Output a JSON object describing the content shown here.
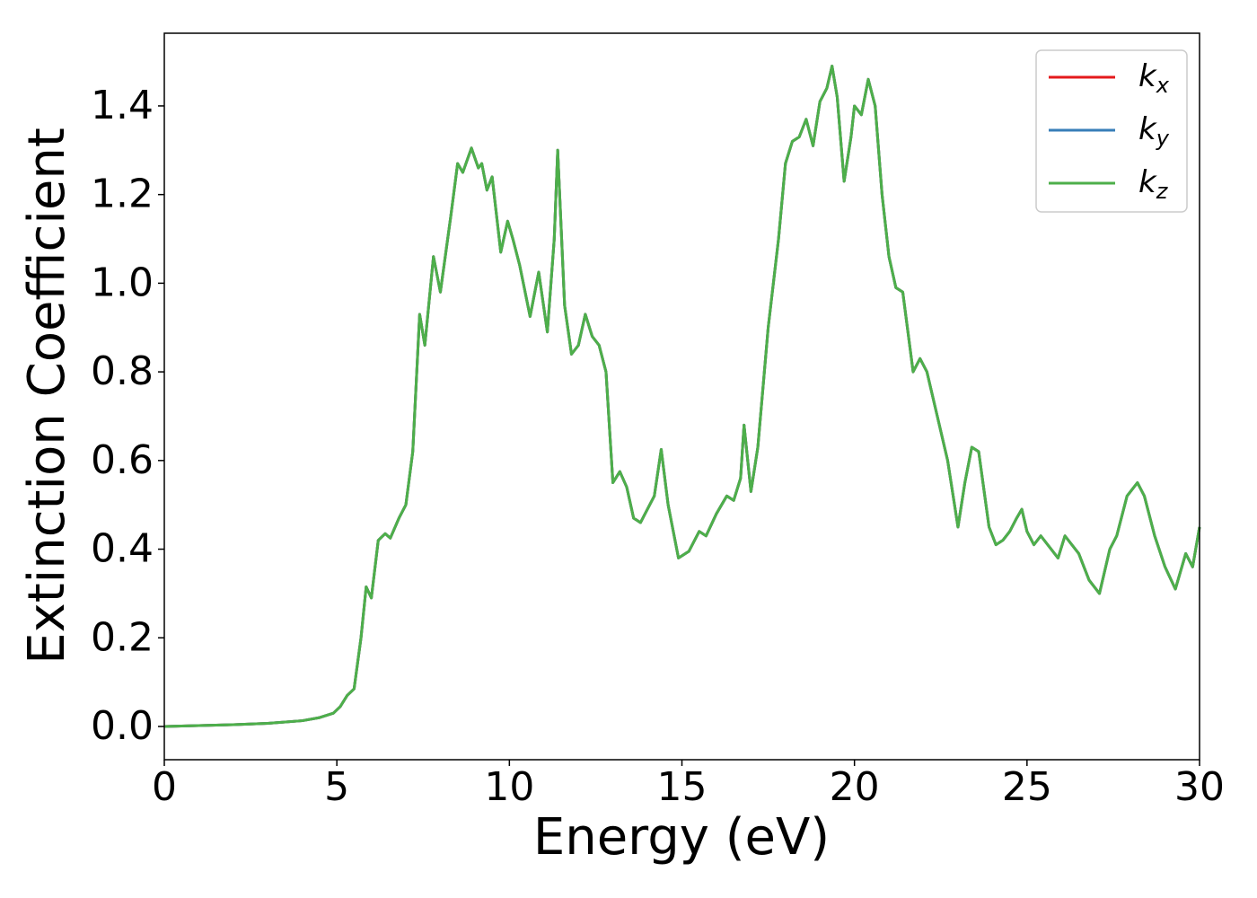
{
  "chart_data": {
    "type": "line",
    "xlabel": "Energy (eV)",
    "ylabel": "Extinction Coefficient",
    "x": [
      0,
      1,
      2,
      3,
      4,
      4.5,
      4.9,
      5.1,
      5.3,
      5.5,
      5.7,
      5.85,
      6.0,
      6.2,
      6.4,
      6.55,
      6.8,
      7.0,
      7.2,
      7.4,
      7.55,
      7.8,
      8.0,
      8.3,
      8.5,
      8.65,
      8.9,
      9.1,
      9.2,
      9.35,
      9.5,
      9.75,
      9.95,
      10.1,
      10.3,
      10.6,
      10.85,
      11.1,
      11.3,
      11.4,
      11.6,
      11.8,
      12.0,
      12.2,
      12.4,
      12.6,
      12.8,
      13.0,
      13.2,
      13.4,
      13.6,
      13.8,
      14.0,
      14.2,
      14.4,
      14.6,
      14.9,
      15.2,
      15.5,
      15.7,
      16.0,
      16.3,
      16.5,
      16.7,
      16.8,
      17.0,
      17.2,
      17.5,
      17.8,
      18.0,
      18.2,
      18.4,
      18.6,
      18.8,
      19.0,
      19.2,
      19.35,
      19.5,
      19.7,
      19.9,
      20.0,
      20.2,
      20.4,
      20.6,
      20.8,
      21.0,
      21.2,
      21.4,
      21.7,
      21.9,
      22.1,
      22.4,
      22.7,
      23.0,
      23.2,
      23.4,
      23.6,
      23.9,
      24.1,
      24.3,
      24.5,
      24.7,
      24.85,
      25.0,
      25.2,
      25.4,
      25.6,
      25.9,
      26.1,
      26.3,
      26.5,
      26.8,
      27.1,
      27.4,
      27.6,
      27.9,
      28.2,
      28.4,
      28.7,
      29.0,
      29.3,
      29.6,
      29.8,
      30.0
    ],
    "series": [
      {
        "name": "kx",
        "color": "#e41a1c",
        "values": [
          0,
          0.002,
          0.004,
          0.007,
          0.013,
          0.02,
          0.03,
          0.045,
          0.07,
          0.085,
          0.2,
          0.315,
          0.29,
          0.42,
          0.435,
          0.425,
          0.47,
          0.5,
          0.62,
          0.93,
          0.86,
          1.06,
          0.98,
          1.15,
          1.27,
          1.25,
          1.305,
          1.26,
          1.27,
          1.21,
          1.24,
          1.07,
          1.14,
          1.1,
          1.04,
          0.925,
          1.025,
          0.89,
          1.1,
          1.3,
          0.95,
          0.84,
          0.86,
          0.93,
          0.88,
          0.86,
          0.8,
          0.55,
          0.575,
          0.54,
          0.47,
          0.46,
          0.49,
          0.52,
          0.625,
          0.5,
          0.38,
          0.395,
          0.44,
          0.43,
          0.48,
          0.52,
          0.51,
          0.56,
          0.68,
          0.53,
          0.63,
          0.9,
          1.1,
          1.27,
          1.32,
          1.33,
          1.37,
          1.31,
          1.41,
          1.44,
          1.49,
          1.42,
          1.23,
          1.33,
          1.4,
          1.38,
          1.46,
          1.4,
          1.2,
          1.06,
          0.99,
          0.98,
          0.8,
          0.83,
          0.8,
          0.7,
          0.6,
          0.45,
          0.55,
          0.63,
          0.62,
          0.45,
          0.41,
          0.42,
          0.44,
          0.47,
          0.49,
          0.44,
          0.41,
          0.43,
          0.41,
          0.38,
          0.43,
          0.41,
          0.39,
          0.33,
          0.3,
          0.4,
          0.43,
          0.52,
          0.55,
          0.52,
          0.43,
          0.36,
          0.31,
          0.39,
          0.36,
          0.45
        ]
      },
      {
        "name": "ky",
        "color": "#377eb8",
        "values": [
          0,
          0.002,
          0.004,
          0.007,
          0.013,
          0.02,
          0.03,
          0.045,
          0.07,
          0.085,
          0.2,
          0.315,
          0.29,
          0.42,
          0.435,
          0.425,
          0.47,
          0.5,
          0.62,
          0.93,
          0.86,
          1.06,
          0.98,
          1.15,
          1.27,
          1.25,
          1.305,
          1.26,
          1.27,
          1.21,
          1.24,
          1.07,
          1.14,
          1.1,
          1.04,
          0.925,
          1.025,
          0.89,
          1.1,
          1.3,
          0.95,
          0.84,
          0.86,
          0.93,
          0.88,
          0.86,
          0.8,
          0.55,
          0.575,
          0.54,
          0.47,
          0.46,
          0.49,
          0.52,
          0.625,
          0.5,
          0.38,
          0.395,
          0.44,
          0.43,
          0.48,
          0.52,
          0.51,
          0.56,
          0.68,
          0.53,
          0.63,
          0.9,
          1.1,
          1.27,
          1.32,
          1.33,
          1.37,
          1.31,
          1.41,
          1.44,
          1.49,
          1.42,
          1.23,
          1.33,
          1.4,
          1.38,
          1.46,
          1.4,
          1.2,
          1.06,
          0.99,
          0.98,
          0.8,
          0.83,
          0.8,
          0.7,
          0.6,
          0.45,
          0.55,
          0.63,
          0.62,
          0.45,
          0.41,
          0.42,
          0.44,
          0.47,
          0.49,
          0.44,
          0.41,
          0.43,
          0.41,
          0.38,
          0.43,
          0.41,
          0.39,
          0.33,
          0.3,
          0.4,
          0.43,
          0.52,
          0.55,
          0.52,
          0.43,
          0.36,
          0.31,
          0.39,
          0.36,
          0.45
        ]
      },
      {
        "name": "kz",
        "color": "#4daf4a",
        "values": [
          0,
          0.002,
          0.004,
          0.007,
          0.013,
          0.02,
          0.03,
          0.045,
          0.07,
          0.085,
          0.2,
          0.315,
          0.29,
          0.42,
          0.435,
          0.425,
          0.47,
          0.5,
          0.62,
          0.93,
          0.86,
          1.06,
          0.98,
          1.15,
          1.27,
          1.25,
          1.305,
          1.26,
          1.27,
          1.21,
          1.24,
          1.07,
          1.14,
          1.1,
          1.04,
          0.925,
          1.025,
          0.89,
          1.1,
          1.3,
          0.95,
          0.84,
          0.86,
          0.93,
          0.88,
          0.86,
          0.8,
          0.55,
          0.575,
          0.54,
          0.47,
          0.46,
          0.49,
          0.52,
          0.625,
          0.5,
          0.38,
          0.395,
          0.44,
          0.43,
          0.48,
          0.52,
          0.51,
          0.56,
          0.68,
          0.53,
          0.63,
          0.9,
          1.1,
          1.27,
          1.32,
          1.33,
          1.37,
          1.31,
          1.41,
          1.44,
          1.49,
          1.42,
          1.23,
          1.33,
          1.4,
          1.38,
          1.46,
          1.4,
          1.2,
          1.06,
          0.99,
          0.98,
          0.8,
          0.83,
          0.8,
          0.7,
          0.6,
          0.45,
          0.55,
          0.63,
          0.62,
          0.45,
          0.41,
          0.42,
          0.44,
          0.47,
          0.49,
          0.44,
          0.41,
          0.43,
          0.41,
          0.38,
          0.43,
          0.41,
          0.39,
          0.33,
          0.3,
          0.4,
          0.43,
          0.52,
          0.55,
          0.52,
          0.43,
          0.36,
          0.31,
          0.39,
          0.36,
          0.45
        ]
      }
    ],
    "xlim": [
      0,
      30
    ],
    "xticks": [
      0,
      5,
      10,
      15,
      20,
      25,
      30
    ],
    "ylim": [
      -0.075,
      1.564
    ],
    "yticks": [
      {
        "value": 0,
        "label": "0.0"
      },
      0.2,
      0.4,
      0.6,
      0.8,
      {
        "value": 1,
        "label": "1.0"
      },
      1.2,
      1.4
    ],
    "legend": "upper right"
  }
}
